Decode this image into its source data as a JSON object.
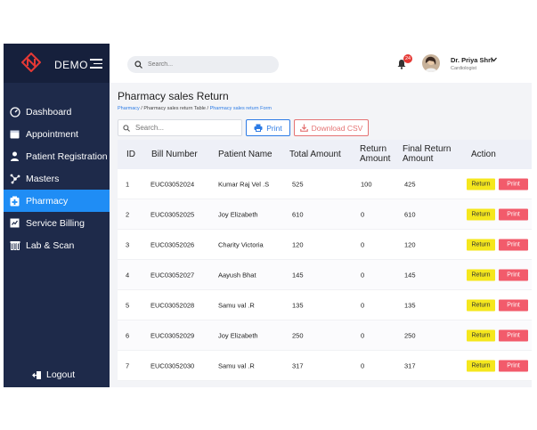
{
  "brand": {
    "name": "DEMO"
  },
  "topbar": {
    "search_placeholder": "Search...",
    "notification_count": "24",
    "user_name": "Dr. Priya Shri",
    "user_role": "Cardiologist"
  },
  "sidebar": {
    "items": [
      {
        "label": "Dashboard",
        "icon": "dashboard-icon"
      },
      {
        "label": "Appointment",
        "icon": "calendar-icon"
      },
      {
        "label": "Patient Registration",
        "icon": "user-icon"
      },
      {
        "label": "Masters",
        "icon": "network-icon"
      },
      {
        "label": "Pharmacy",
        "icon": "medkit-icon"
      },
      {
        "label": "Service Billing",
        "icon": "billing-icon"
      },
      {
        "label": "Lab & Scan",
        "icon": "lab-icon"
      }
    ],
    "active": "Pharmacy",
    "logout_label": "Logout"
  },
  "page": {
    "title": "Pharmacy sales Return",
    "breadcrumb": [
      "Pharmacy",
      "Pharmacy sales return Table",
      "Pharmacy sales return Form"
    ],
    "search_placeholder": "Search...",
    "print_label": "Print",
    "csv_label": "Download CSV"
  },
  "table": {
    "headers": {
      "id": "ID",
      "bill": "Bill Number",
      "patient": "Patient Name",
      "total": "Total Amount",
      "return1": "Return",
      "return2": "Amount",
      "final1": "Final Return",
      "final2": "Amount",
      "action": "Action"
    },
    "return_label": "Return",
    "print_label": "Print",
    "rows": [
      {
        "id": "1",
        "bill": "EUC03052024",
        "patient": "Kumar Raj Vel .S",
        "total": "525",
        "ret": "100",
        "final": "425"
      },
      {
        "id": "2",
        "bill": "EUC03052025",
        "patient": "Joy Elizabeth",
        "total": "610",
        "ret": "0",
        "final": "610"
      },
      {
        "id": "3",
        "bill": "EUC03052026",
        "patient": "Charity Victoria",
        "total": "120",
        "ret": "0",
        "final": "120"
      },
      {
        "id": "4",
        "bill": "EUC03052027",
        "patient": "Aayush Bhat",
        "total": "145",
        "ret": "0",
        "final": "145"
      },
      {
        "id": "5",
        "bill": "EUC03052028",
        "patient": "Samu val .R",
        "total": "135",
        "ret": "0",
        "final": "135"
      },
      {
        "id": "6",
        "bill": "EUC03052029",
        "patient": "Joy Elizabeth",
        "total": "250",
        "ret": "0",
        "final": "250"
      },
      {
        "id": "7",
        "bill": "EUC03052030",
        "patient": "Samu val .R",
        "total": "317",
        "ret": "0",
        "final": "317"
      }
    ]
  },
  "colors": {
    "sidebar": "#1e2a4a",
    "active": "#1f8df5",
    "return_button": "#f5e71d",
    "print_button": "#f25b6b"
  }
}
